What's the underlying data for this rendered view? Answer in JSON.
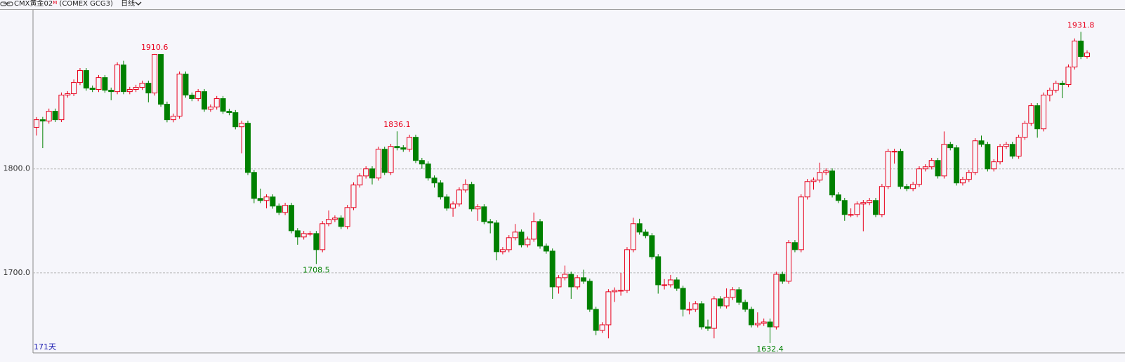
{
  "header": {
    "name": "CMX黄金02",
    "badge": "M",
    "code": "(COMEX GCG3)",
    "period": "日线"
  },
  "chart_data": {
    "type": "candlestick",
    "days_label": "171天",
    "ylim": [
      1623,
      1953
    ],
    "yticks": [
      {
        "value": 1700,
        "label": "1700.0"
      },
      {
        "value": 1800,
        "label": "1800.0"
      }
    ],
    "grid": true,
    "up_color": "#e8001c",
    "down_color": "#008000",
    "annotations": [
      1910.6,
      1836.1,
      1708.5,
      1632.4,
      1931.8
    ],
    "candles": [
      [
        1840,
        1849.8,
        1832,
        1847.3
      ],
      [
        1847.3,
        1850,
        1820,
        1846.0
      ],
      [
        1846.0,
        1858,
        1843.5,
        1855.4
      ],
      [
        1855.4,
        1858,
        1845,
        1847.3
      ],
      [
        1847.3,
        1873.5,
        1845,
        1871.0
      ],
      [
        1871.0,
        1874.8,
        1868.5,
        1872.3
      ],
      [
        1872.3,
        1886,
        1870,
        1883.1
      ],
      [
        1883.1,
        1897,
        1880.6,
        1894.6
      ],
      [
        1894.6,
        1897,
        1875.2,
        1877.7
      ],
      [
        1877.7,
        1880.2,
        1873.9,
        1876.4
      ],
      [
        1876.4,
        1890.3,
        1873.9,
        1887.8
      ],
      [
        1887.8,
        1890.3,
        1873.2,
        1875.7
      ],
      [
        1875.7,
        1878.2,
        1866,
        1874.3
      ],
      [
        1874.3,
        1902.5,
        1871.8,
        1900.0
      ],
      [
        1900.0,
        1904,
        1871.8,
        1874.3
      ],
      [
        1874.3,
        1878.9,
        1871.8,
        1876.4
      ],
      [
        1876.4,
        1880.9,
        1873.9,
        1878.4
      ],
      [
        1878.4,
        1884.9,
        1875.9,
        1882.4
      ],
      [
        1882.4,
        1884.9,
        1864,
        1873.0
      ],
      [
        1873.0,
        1910.6,
        1870.5,
        1910.1
      ],
      [
        1910.1,
        1910.4,
        1859.7,
        1862.2
      ],
      [
        1862.2,
        1864.7,
        1844.8,
        1847.3
      ],
      [
        1847.3,
        1853.2,
        1844.8,
        1850.7
      ],
      [
        1850.7,
        1893.7,
        1848.2,
        1891.2
      ],
      [
        1891.2,
        1893.7,
        1868.5,
        1871.0
      ],
      [
        1871.0,
        1873.5,
        1865.1,
        1867.6
      ],
      [
        1867.6,
        1876.8,
        1865.1,
        1874.3
      ],
      [
        1874.3,
        1876.8,
        1854.9,
        1857.4
      ],
      [
        1857.4,
        1862,
        1854.9,
        1859.5
      ],
      [
        1859.5,
        1870.1,
        1857,
        1867.6
      ],
      [
        1867.6,
        1870.1,
        1852.9,
        1855.4
      ],
      [
        1855.4,
        1857.9,
        1851.6,
        1854.1
      ],
      [
        1854.1,
        1856.6,
        1838,
        1840.5
      ],
      [
        1840.5,
        1846.4,
        1815,
        1843.9
      ],
      [
        1843.9,
        1846.4,
        1794.1,
        1796.6
      ],
      [
        1796.6,
        1799.1,
        1767,
        1771.6
      ],
      [
        1771.6,
        1781,
        1767.1,
        1769.6
      ],
      [
        1769.6,
        1775.5,
        1762,
        1773.0
      ],
      [
        1773.0,
        1775.5,
        1761.7,
        1764.2
      ],
      [
        1764.2,
        1766.7,
        1755.6,
        1758.1
      ],
      [
        1758.1,
        1767.4,
        1755.6,
        1764.9
      ],
      [
        1764.9,
        1767.4,
        1738,
        1740.5
      ],
      [
        1740.5,
        1743,
        1727,
        1734.5
      ],
      [
        1734.5,
        1740.3,
        1732,
        1737.8
      ],
      [
        1737.8,
        1740.3,
        1735.3,
        1737.8
      ],
      [
        1737.8,
        1740.3,
        1708.5,
        1722.3
      ],
      [
        1722.3,
        1749.8,
        1719.8,
        1747.3
      ],
      [
        1747.3,
        1760,
        1744.8,
        1751.4
      ],
      [
        1751.4,
        1755.2,
        1748.9,
        1752.7
      ],
      [
        1752.7,
        1755.2,
        1742.1,
        1744.6
      ],
      [
        1744.6,
        1765.3,
        1742.1,
        1762.8
      ],
      [
        1762.8,
        1787,
        1760.3,
        1784.5
      ],
      [
        1784.5,
        1795.7,
        1782,
        1793.2
      ],
      [
        1793.2,
        1802.5,
        1790.7,
        1800.0
      ],
      [
        1800.0,
        1802.5,
        1785,
        1791.2
      ],
      [
        1791.2,
        1821.4,
        1788.7,
        1818.9
      ],
      [
        1818.9,
        1821.4,
        1794.1,
        1796.6
      ],
      [
        1796.6,
        1824.1,
        1794.1,
        1821.6
      ],
      [
        1821.6,
        1836.1,
        1817.8,
        1820.3
      ],
      [
        1820.3,
        1822.8,
        1816.4,
        1818.9
      ],
      [
        1818.9,
        1832.9,
        1816.4,
        1830.4
      ],
      [
        1830.4,
        1832.9,
        1805.6,
        1808.1
      ],
      [
        1808.1,
        1810.6,
        1800,
        1804.7
      ],
      [
        1804.7,
        1807.2,
        1788.7,
        1791.2
      ],
      [
        1791.2,
        1793.7,
        1782,
        1786.5
      ],
      [
        1786.5,
        1789,
        1770.5,
        1773.0
      ],
      [
        1773.0,
        1775.5,
        1759.7,
        1762.2
      ],
      [
        1762.2,
        1768.7,
        1754,
        1766.2
      ],
      [
        1766.2,
        1782.2,
        1763.7,
        1779.7
      ],
      [
        1779.7,
        1790,
        1777.2,
        1785.1
      ],
      [
        1785.1,
        1787.6,
        1759,
        1761.5
      ],
      [
        1761.5,
        1766,
        1750,
        1763.5
      ],
      [
        1763.5,
        1766,
        1746.8,
        1749.3
      ],
      [
        1749.3,
        1751.8,
        1738,
        1748.0
      ],
      [
        1748.0,
        1750.5,
        1712,
        1720.3
      ],
      [
        1720.3,
        1724.8,
        1717.8,
        1722.3
      ],
      [
        1722.3,
        1736.3,
        1719.8,
        1733.8
      ],
      [
        1733.8,
        1747,
        1731.3,
        1739.2
      ],
      [
        1739.2,
        1741.7,
        1724.5,
        1727.0
      ],
      [
        1727.0,
        1734.9,
        1724.5,
        1732.4
      ],
      [
        1732.4,
        1758,
        1729.9,
        1749.3
      ],
      [
        1749.3,
        1751.8,
        1723.2,
        1725.7
      ],
      [
        1725.7,
        1728.2,
        1718.4,
        1720.9
      ],
      [
        1720.9,
        1723.4,
        1675,
        1686.5
      ],
      [
        1686.5,
        1697.8,
        1680,
        1695.3
      ],
      [
        1695.3,
        1707,
        1692.8,
        1698.6
      ],
      [
        1698.6,
        1701.1,
        1675,
        1686.5
      ],
      [
        1686.5,
        1697.8,
        1684,
        1695.3
      ],
      [
        1695.3,
        1703,
        1689.4,
        1691.9
      ],
      [
        1691.9,
        1694.4,
        1662.4,
        1664.9
      ],
      [
        1664.9,
        1667.4,
        1640,
        1644.6
      ],
      [
        1644.6,
        1652.5,
        1642.1,
        1650.0
      ],
      [
        1650.0,
        1684.3,
        1637,
        1681.8
      ],
      [
        1681.8,
        1686,
        1672,
        1683.1
      ],
      [
        1683.1,
        1700,
        1678,
        1683.1
      ],
      [
        1683.1,
        1724.8,
        1680.6,
        1722.3
      ],
      [
        1722.3,
        1753,
        1719.8,
        1747.3
      ],
      [
        1747.3,
        1752,
        1736.7,
        1739.2
      ],
      [
        1739.2,
        1741.7,
        1733.3,
        1735.8
      ],
      [
        1735.8,
        1738.3,
        1713,
        1715.5
      ],
      [
        1715.5,
        1718,
        1680,
        1688.5
      ],
      [
        1688.5,
        1694,
        1684,
        1688.5
      ],
      [
        1688.5,
        1698,
        1686,
        1693.2
      ],
      [
        1693.2,
        1695.7,
        1682.6,
        1685.1
      ],
      [
        1685.1,
        1687.6,
        1658,
        1664.9
      ],
      [
        1664.9,
        1672,
        1660,
        1664.9
      ],
      [
        1664.9,
        1672.8,
        1662.4,
        1670.3
      ],
      [
        1670.3,
        1672.8,
        1645.5,
        1648.0
      ],
      [
        1648.0,
        1655,
        1644.1,
        1646.6
      ],
      [
        1646.6,
        1677.5,
        1637,
        1675.0
      ],
      [
        1675.0,
        1677.5,
        1665.7,
        1668.2
      ],
      [
        1668.2,
        1685,
        1665.7,
        1676.4
      ],
      [
        1676.4,
        1686.3,
        1673.9,
        1683.8
      ],
      [
        1683.8,
        1686.3,
        1669.1,
        1671.6
      ],
      [
        1671.6,
        1674.1,
        1662.4,
        1664.9
      ],
      [
        1664.9,
        1667.4,
        1647.5,
        1650.0
      ],
      [
        1650.0,
        1662,
        1647.5,
        1651.4
      ],
      [
        1651.4,
        1656,
        1648.9,
        1652.7
      ],
      [
        1652.7,
        1656,
        1632.4,
        1648.0
      ],
      [
        1648.0,
        1701.1,
        1645.5,
        1698.6
      ],
      [
        1698.6,
        1701.1,
        1689.4,
        1691.9
      ],
      [
        1691.9,
        1731.6,
        1689.4,
        1729.1
      ],
      [
        1729.1,
        1731.6,
        1719.8,
        1722.3
      ],
      [
        1722.3,
        1775.5,
        1719.8,
        1773.0
      ],
      [
        1773.0,
        1790.3,
        1770.5,
        1787.8
      ],
      [
        1787.8,
        1791.7,
        1780,
        1789.2
      ],
      [
        1789.2,
        1806,
        1786.7,
        1796.6
      ],
      [
        1796.6,
        1800.5,
        1794.1,
        1798.0
      ],
      [
        1798.0,
        1800.5,
        1772.5,
        1775.0
      ],
      [
        1775.0,
        1777.5,
        1767.1,
        1769.6
      ],
      [
        1769.6,
        1772.1,
        1750,
        1756.1
      ],
      [
        1756.1,
        1762,
        1753.6,
        1756.1
      ],
      [
        1756.1,
        1768.7,
        1753.6,
        1766.2
      ],
      [
        1766.2,
        1770.1,
        1740,
        1767.6
      ],
      [
        1767.6,
        1772.1,
        1765.1,
        1769.6
      ],
      [
        1769.6,
        1772.1,
        1753.6,
        1756.1
      ],
      [
        1756.1,
        1785.6,
        1753.6,
        1783.1
      ],
      [
        1783.1,
        1819.4,
        1780.6,
        1816.9
      ],
      [
        1816.9,
        1819.4,
        1805,
        1816.9
      ],
      [
        1816.9,
        1819.4,
        1780.6,
        1783.1
      ],
      [
        1783.1,
        1785.6,
        1778.6,
        1781.1
      ],
      [
        1781.1,
        1787.6,
        1778.6,
        1785.1
      ],
      [
        1785.1,
        1802.5,
        1782.6,
        1800.0
      ],
      [
        1800.0,
        1804.5,
        1797.5,
        1802.0
      ],
      [
        1802.0,
        1810.6,
        1799.5,
        1808.1
      ],
      [
        1808.1,
        1810.6,
        1790.7,
        1793.2
      ],
      [
        1793.2,
        1836,
        1790.7,
        1823.6
      ],
      [
        1823.6,
        1826.1,
        1817.8,
        1820.3
      ],
      [
        1820.3,
        1822.8,
        1784,
        1786.5
      ],
      [
        1786.5,
        1792.4,
        1784,
        1789.9
      ],
      [
        1789.9,
        1799.1,
        1787.4,
        1796.6
      ],
      [
        1796.6,
        1829.5,
        1794.1,
        1827.0
      ],
      [
        1827.0,
        1832,
        1821.1,
        1823.6
      ],
      [
        1823.6,
        1826.1,
        1797.5,
        1800.0
      ],
      [
        1800.0,
        1809.3,
        1797.5,
        1806.8
      ],
      [
        1806.8,
        1824.1,
        1804.3,
        1821.6
      ],
      [
        1821.6,
        1826.1,
        1819.1,
        1823.6
      ],
      [
        1823.6,
        1826.1,
        1809.7,
        1812.2
      ],
      [
        1812.2,
        1832.9,
        1809.7,
        1830.4
      ],
      [
        1830.4,
        1846.4,
        1827.9,
        1843.9
      ],
      [
        1843.9,
        1863.3,
        1841.4,
        1860.8
      ],
      [
        1860.8,
        1863.3,
        1830,
        1838.5
      ],
      [
        1838.5,
        1873.5,
        1836,
        1871.0
      ],
      [
        1871.0,
        1878.2,
        1865,
        1875.7
      ],
      [
        1875.7,
        1884.9,
        1873.2,
        1882.4
      ],
      [
        1882.4,
        1884.9,
        1868,
        1881.1
      ],
      [
        1881.1,
        1900.5,
        1878.6,
        1898.0
      ],
      [
        1898.0,
        1925.5,
        1895.5,
        1923.0
      ],
      [
        1923.0,
        1931.8,
        1905.6,
        1908.1
      ],
      [
        1908.1,
        1914,
        1906,
        1911.5
      ]
    ]
  }
}
